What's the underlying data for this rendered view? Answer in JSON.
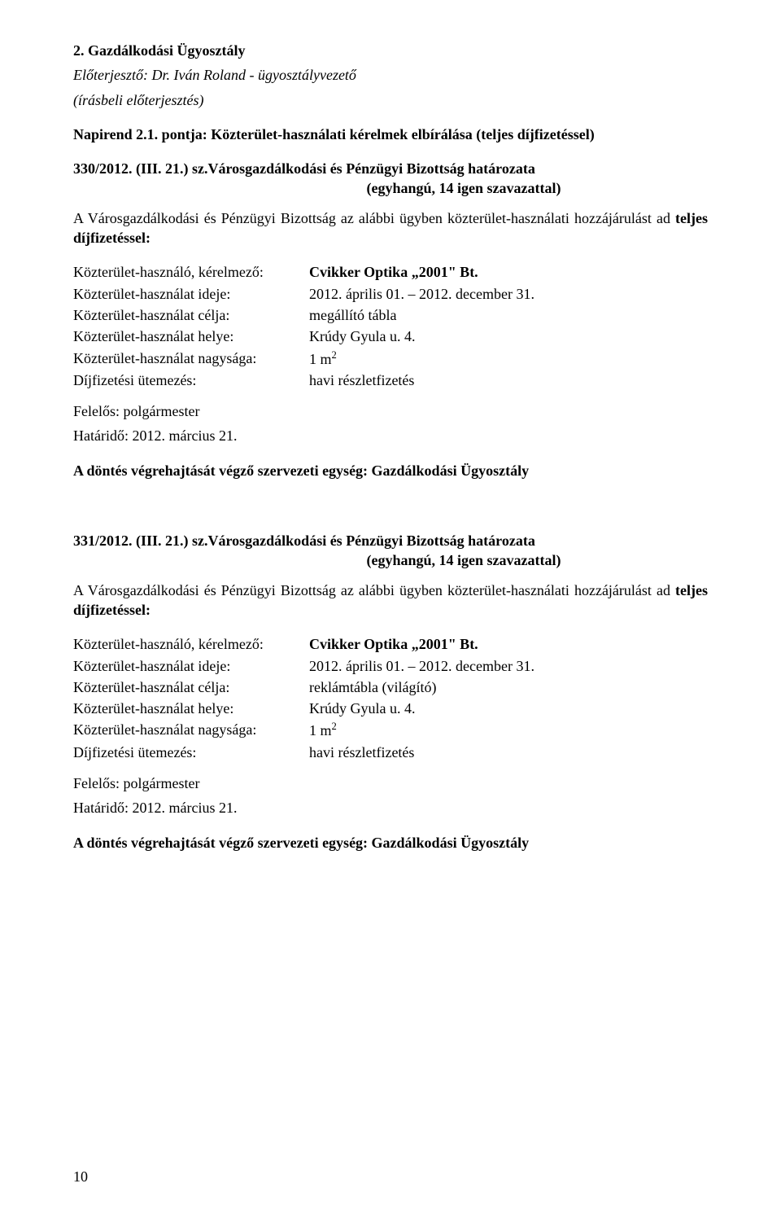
{
  "colors": {
    "text": "#000000",
    "background": "#ffffff"
  },
  "typography": {
    "font_family": "Times New Roman",
    "base_size_pt": 14
  },
  "header": {
    "section": "2. Gazdálkodási Ügyosztály",
    "presenter_label": "Előterjesztő: Dr. Iván Roland - ügyosztályvezető",
    "written_note": "(írásbeli előterjesztés)"
  },
  "agenda": {
    "line": "Napirend 2.1. pontja: Közterület-használati kérelmek elbírálása (teljes díjfizetéssel)"
  },
  "resolution1": {
    "number": "330/2012. (III. 21.) sz. ",
    "title_cont": "Városgazdálkodási és Pénzügyi Bizottság határozata",
    "vote": "(egyhangú, 14 igen szavazattal)",
    "lead": "A Városgazdálkodási és Pénzügyi Bizottság az alábbi ügyben közterület-használati hozzájárulást ad ",
    "lead_bold": "teljes díjfizetéssel:",
    "rows": {
      "user_label": "Közterület-használó, kérelmező:",
      "user_value": "Cvikker Optika „2001\" Bt.",
      "time_label": "Közterület-használat ideje:",
      "time_value": "2012. április 01. – 2012. december 31.",
      "purpose_label": "Közterület-használat célja:",
      "purpose_value": "megállító tábla",
      "place_label": "Közterület-használat helye:",
      "place_value": "Krúdy Gyula u. 4.",
      "size_label": "Közterület-használat nagysága:",
      "size_value_pre": "1 m",
      "size_value_sup": "2",
      "schedule_label": "Díjfizetési ütemezés:",
      "schedule_value": "havi részletfizetés"
    },
    "responsible": "Felelős: polgármester",
    "deadline": "Határidő: 2012. március 21.",
    "exec_unit": "A döntés végrehajtását végző szervezeti egység: Gazdálkodási Ügyosztály"
  },
  "resolution2": {
    "number": "331/2012. (III. 21.) sz. ",
    "title_cont": "Városgazdálkodási és Pénzügyi Bizottság határozata",
    "vote": "(egyhangú, 14 igen szavazattal)",
    "lead": "A Városgazdálkodási és Pénzügyi Bizottság az alábbi ügyben közterület-használati hozzájárulást ad ",
    "lead_bold": "teljes díjfizetéssel:",
    "rows": {
      "user_label": "Közterület-használó, kérelmező:",
      "user_value": "Cvikker Optika „2001\" Bt.",
      "time_label": "Közterület-használat ideje:",
      "time_value": "2012. április 01. – 2012. december 31.",
      "purpose_label": "Közterület-használat célja:",
      "purpose_value": "reklámtábla (világító)",
      "place_label": "Közterület-használat helye:",
      "place_value": "Krúdy Gyula u. 4.",
      "size_label": "Közterület-használat nagysága:",
      "size_value_pre": "1 m",
      "size_value_sup": "2",
      "schedule_label": "Díjfizetési ütemezés:",
      "schedule_value": "havi részletfizetés"
    },
    "responsible": "Felelős: polgármester",
    "deadline": "Határidő: 2012. március 21.",
    "exec_unit": "A döntés végrehajtását végző szervezeti egység: Gazdálkodási Ügyosztály"
  },
  "page_number": "10"
}
